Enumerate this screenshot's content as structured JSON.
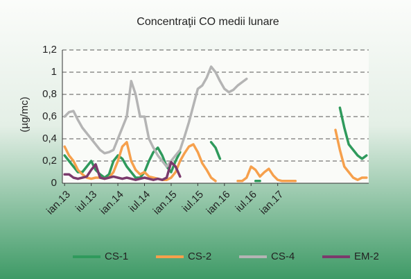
{
  "chart_data": {
    "type": "line",
    "title": "Concentraţii CO medii  lunare",
    "y_label": "(µg/mc)",
    "categories": [
      "ian.13",
      null,
      null,
      null,
      null,
      null,
      "iul.13",
      null,
      null,
      null,
      null,
      null,
      "ian.14",
      null,
      null,
      null,
      null,
      null,
      "iul.14",
      null,
      null,
      null,
      null,
      null,
      "ian.15",
      null,
      null,
      null,
      null,
      null,
      "iul.15",
      null,
      null,
      null,
      null,
      null,
      "ian.16",
      null,
      null,
      null,
      null,
      null,
      "iul.16",
      null,
      null,
      null,
      null,
      null,
      "ian.17",
      null,
      null,
      null,
      null,
      null,
      null,
      null,
      null,
      null,
      null,
      null,
      null,
      null,
      null,
      null,
      null,
      null,
      null,
      null,
      null
    ],
    "ylim": [
      0,
      1.2
    ],
    "yticks": [
      0,
      {
        "value": 0.2,
        "label": "0,2"
      },
      {
        "value": 0.4,
        "label": "0,4"
      },
      {
        "value": 0.6,
        "label": "0,6"
      },
      {
        "value": 0.8,
        "label": "0,8"
      },
      {
        "value": 1,
        "label": "1"
      },
      {
        "value": 1.2,
        "label": "1,2"
      }
    ],
    "grid": true,
    "legend": "bottom",
    "series": [
      {
        "name": "CS-1",
        "color": "#2f9a5c",
        "values": [
          0.25,
          0.2,
          0.15,
          0.1,
          0.1,
          0.15,
          0.2,
          0.12,
          0.08,
          0.05,
          0.08,
          0.2,
          0.25,
          0.22,
          0.15,
          0.1,
          0.05,
          0.05,
          0.1,
          0.2,
          0.28,
          0.32,
          0.25,
          0.15,
          0.1,
          0.2,
          0.28,
          null,
          null,
          null,
          null,
          null,
          null,
          0.37,
          0.32,
          0.22,
          null,
          null,
          null,
          null,
          null,
          null,
          null,
          0.02,
          0.02,
          null,
          null,
          null,
          null,
          null,
          null,
          null,
          null,
          null,
          null,
          null,
          null,
          null,
          null,
          null,
          null,
          null,
          0.68,
          0.5,
          0.35,
          0.3,
          0.25,
          0.22,
          0.25
        ]
      },
      {
        "name": "CS-2",
        "color": "#f6a04c",
        "values": [
          0.33,
          0.25,
          0.2,
          0.12,
          0.08,
          0.05,
          0.04,
          0.05,
          0.05,
          0.04,
          0.05,
          0.1,
          0.2,
          0.33,
          0.37,
          0.2,
          0.12,
          0.08,
          0.1,
          0.06,
          0.05,
          0.04,
          0.03,
          0.03,
          0.05,
          0.1,
          0.2,
          0.27,
          0.33,
          0.35,
          0.28,
          0.18,
          0.12,
          0.05,
          0.02,
          null,
          null,
          null,
          null,
          0.02,
          0.02,
          0.05,
          0.15,
          0.12,
          0.06,
          0.1,
          0.13,
          0.07,
          0.03,
          0.02,
          0.02,
          0.02,
          0.02,
          null,
          null,
          null,
          null,
          null,
          null,
          null,
          null,
          0.48,
          0.3,
          0.15,
          0.1,
          0.05,
          0.03,
          0.05,
          0.05
        ]
      },
      {
        "name": "CS-4",
        "color": "#b4b4b4",
        "values": [
          0.6,
          0.64,
          0.65,
          0.57,
          0.5,
          0.45,
          0.4,
          0.35,
          0.3,
          0.27,
          0.28,
          0.3,
          0.4,
          0.5,
          0.6,
          0.92,
          0.8,
          0.6,
          0.6,
          0.4,
          0.32,
          0.25,
          0.2,
          0.15,
          0.2,
          0.25,
          0.3,
          0.42,
          0.55,
          0.7,
          0.85,
          0.88,
          0.95,
          1.05,
          1.0,
          0.92,
          0.85,
          0.82,
          0.84,
          0.88,
          0.91,
          0.94,
          null,
          null,
          null,
          null,
          null,
          null,
          null,
          null,
          null,
          null,
          null,
          null,
          null,
          null,
          null,
          null,
          null,
          null,
          null,
          null,
          null,
          null,
          null,
          null,
          null,
          null,
          null
        ]
      },
      {
        "name": "EM-2",
        "color": "#7b3a6c",
        "values": [
          0.08,
          0.08,
          0.05,
          0.04,
          0.05,
          0.06,
          0.12,
          0.17,
          0.05,
          0.04,
          0.05,
          0.06,
          0.05,
          0.04,
          0.05,
          0.04,
          0.03,
          0.04,
          0.05,
          0.04,
          0.03,
          0.04,
          0.03,
          0.05,
          0.19,
          0.15,
          0.06,
          null,
          null,
          null,
          null,
          null,
          null,
          null,
          null,
          null,
          null,
          null,
          null,
          null,
          null,
          null,
          null,
          null,
          null,
          null,
          null,
          null,
          null,
          null,
          null,
          null,
          null,
          null,
          null,
          null,
          null,
          null,
          null,
          null,
          null,
          null,
          null,
          null,
          null,
          null,
          null,
          null,
          null
        ]
      }
    ]
  }
}
